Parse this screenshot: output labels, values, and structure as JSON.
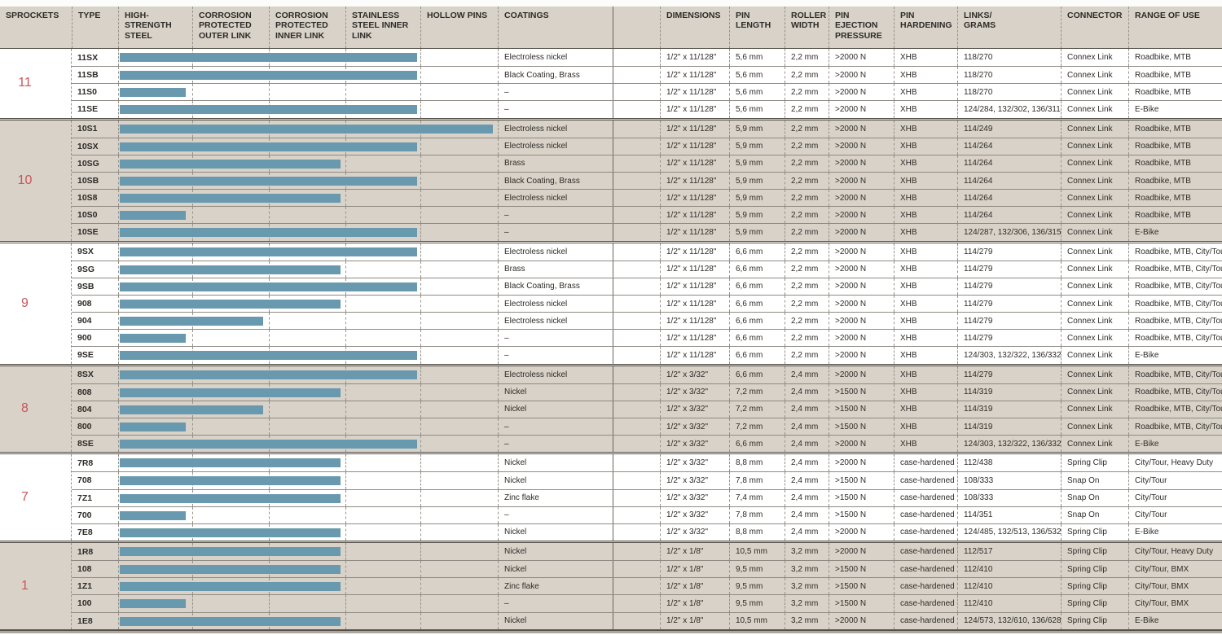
{
  "colors": {
    "accent_red": "#c7575a",
    "bar_blue": "#6899ae",
    "band_beige": "#d8d2c8"
  },
  "header": {
    "sprockets": "SPROCKETS",
    "type": "TYPE",
    "high_strength_steel": "HIGH-\nSTRENGTH\nSTEEL",
    "corrosion_outer": "CORROSION\nPROTECTED\nOUTER LINK",
    "corrosion_inner": "CORROSION\nPROTECTED\nINNER LINK",
    "stainless_inner": "STAINLESS\nSTEEL INNER\nLINK",
    "hollow_pins": "HOLLOW PINS",
    "coatings": "COATINGS",
    "spacer": "",
    "dimensions": "DIMENSIONS",
    "pin_length": "PIN\nLENGTH",
    "roller_width": "ROLLER\nWIDTH",
    "pin_ejection": "PIN\nEJECTION\nPRESSURE",
    "pin_hardening": "PIN\nHARDENING",
    "links_grams": "LINKS/\nGRAMS",
    "connector": "CONNECTOR",
    "range_of_use": "RANGE OF USE"
  },
  "feature_columns": [
    "high-strength-steel",
    "corrosion-protected-outer-link",
    "corrosion-protected-inner-link",
    "stainless-steel-inner-link",
    "hollow-pins"
  ],
  "groups": [
    {
      "sprockets": "11",
      "shaded": false,
      "rows": [
        {
          "type": "11SX",
          "bar": 4,
          "coating": "Electroless nickel",
          "dimensions": "1/2\" x 11/128\"",
          "pin_length": "5,6 mm",
          "roller_width": "2,2 mm",
          "pin_ejection": ">2000 N",
          "pin_hardening": "XHB",
          "links_grams": "118/270",
          "connector": "Connex Link",
          "range_of_use": "Roadbike, MTB"
        },
        {
          "type": "11SB",
          "bar": 4,
          "coating": "Black Coating, Brass",
          "dimensions": "1/2\" x 11/128\"",
          "pin_length": "5,6 mm",
          "roller_width": "2,2 mm",
          "pin_ejection": ">2000 N",
          "pin_hardening": "XHB",
          "links_grams": "118/270",
          "connector": "Connex Link",
          "range_of_use": "Roadbike, MTB"
        },
        {
          "type": "11S0",
          "bar": 1,
          "coating": "–",
          "dimensions": "1/2\" x 11/128\"",
          "pin_length": "5,6 mm",
          "roller_width": "2,2 mm",
          "pin_ejection": ">2000 N",
          "pin_hardening": "XHB",
          "links_grams": "118/270",
          "connector": "Connex Link",
          "range_of_use": "Roadbike, MTB"
        },
        {
          "type": "11SE",
          "bar": 4,
          "coating": "–",
          "dimensions": "1/2\" x 11/128\"",
          "pin_length": "5,6 mm",
          "roller_width": "2,2 mm",
          "pin_ejection": ">2000 N",
          "pin_hardening": "XHB",
          "links_grams": "124/284, 132/302, 136/311",
          "connector": "Connex Link",
          "range_of_use": "E-Bike"
        }
      ]
    },
    {
      "sprockets": "10",
      "shaded": true,
      "rows": [
        {
          "type": "10S1",
          "bar": 5,
          "coating": "Electroless nickel",
          "dimensions": "1/2\" x 11/128\"",
          "pin_length": "5,9 mm",
          "roller_width": "2,2 mm",
          "pin_ejection": ">2000 N",
          "pin_hardening": "XHB",
          "links_grams": "114/249",
          "connector": "Connex Link",
          "range_of_use": "Roadbike, MTB"
        },
        {
          "type": "10SX",
          "bar": 4,
          "coating": "Electroless nickel",
          "dimensions": "1/2\" x 11/128\"",
          "pin_length": "5,9 mm",
          "roller_width": "2,2 mm",
          "pin_ejection": ">2000 N",
          "pin_hardening": "XHB",
          "links_grams": "114/264",
          "connector": "Connex Link",
          "range_of_use": "Roadbike, MTB"
        },
        {
          "type": "10SG",
          "bar": 3,
          "coating": "Brass",
          "dimensions": "1/2\" x 11/128\"",
          "pin_length": "5,9 mm",
          "roller_width": "2,2 mm",
          "pin_ejection": ">2000 N",
          "pin_hardening": "XHB",
          "links_grams": "114/264",
          "connector": "Connex Link",
          "range_of_use": "Roadbike, MTB"
        },
        {
          "type": "10SB",
          "bar": 4,
          "coating": "Black Coating, Brass",
          "dimensions": "1/2\" x 11/128\"",
          "pin_length": "5,9 mm",
          "roller_width": "2,2 mm",
          "pin_ejection": ">2000 N",
          "pin_hardening": "XHB",
          "links_grams": "114/264",
          "connector": "Connex Link",
          "range_of_use": "Roadbike, MTB"
        },
        {
          "type": "10S8",
          "bar": 3,
          "coating": "Electroless nickel",
          "dimensions": "1/2\" x 11/128\"",
          "pin_length": "5,9 mm",
          "roller_width": "2,2 mm",
          "pin_ejection": ">2000 N",
          "pin_hardening": "XHB",
          "links_grams": "114/264",
          "connector": "Connex Link",
          "range_of_use": "Roadbike, MTB"
        },
        {
          "type": "10S0",
          "bar": 1,
          "coating": "–",
          "dimensions": "1/2\" x 11/128\"",
          "pin_length": "5,9 mm",
          "roller_width": "2,2 mm",
          "pin_ejection": ">2000 N",
          "pin_hardening": "XHB",
          "links_grams": "114/264",
          "connector": "Connex Link",
          "range_of_use": "Roadbike, MTB"
        },
        {
          "type": "10SE",
          "bar": 4,
          "coating": "–",
          "dimensions": "1/2\" x 11/128\"",
          "pin_length": "5,9 mm",
          "roller_width": "2,2 mm",
          "pin_ejection": ">2000 N",
          "pin_hardening": "XHB",
          "links_grams": "124/287, 132/306, 136/315",
          "connector": "Connex Link",
          "range_of_use": "E-Bike"
        }
      ]
    },
    {
      "sprockets": "9",
      "shaded": false,
      "rows": [
        {
          "type": "9SX",
          "bar": 4,
          "coating": "Electroless nickel",
          "dimensions": "1/2\" x 11/128\"",
          "pin_length": "6,6 mm",
          "roller_width": "2,2 mm",
          "pin_ejection": ">2000 N",
          "pin_hardening": "XHB",
          "links_grams": "114/279",
          "connector": "Connex Link",
          "range_of_use": "Roadbike, MTB, City/Tour"
        },
        {
          "type": "9SG",
          "bar": 3,
          "coating": "Brass",
          "dimensions": "1/2\" x 11/128\"",
          "pin_length": "6,6 mm",
          "roller_width": "2,2 mm",
          "pin_ejection": ">2000 N",
          "pin_hardening": "XHB",
          "links_grams": "114/279",
          "connector": "Connex Link",
          "range_of_use": "Roadbike, MTB, City/Tour"
        },
        {
          "type": "9SB",
          "bar": 4,
          "coating": "Black Coating, Brass",
          "dimensions": "1/2\" x 11/128\"",
          "pin_length": "6,6 mm",
          "roller_width": "2,2 mm",
          "pin_ejection": ">2000 N",
          "pin_hardening": "XHB",
          "links_grams": "114/279",
          "connector": "Connex Link",
          "range_of_use": "Roadbike, MTB, City/Tour"
        },
        {
          "type": "908",
          "bar": 3,
          "coating": "Electroless nickel",
          "dimensions": "1/2\" x 11/128\"",
          "pin_length": "6,6 mm",
          "roller_width": "2,2 mm",
          "pin_ejection": ">2000 N",
          "pin_hardening": "XHB",
          "links_grams": "114/279",
          "connector": "Connex Link",
          "range_of_use": "Roadbike, MTB, City/Tour"
        },
        {
          "type": "904",
          "bar": 2,
          "coating": "Electroless nickel",
          "dimensions": "1/2\" x 11/128\"",
          "pin_length": "6,6 mm",
          "roller_width": "2,2 mm",
          "pin_ejection": ">2000 N",
          "pin_hardening": "XHB",
          "links_grams": "114/279",
          "connector": "Connex Link",
          "range_of_use": "Roadbike, MTB, City/Tour"
        },
        {
          "type": "900",
          "bar": 1,
          "coating": "–",
          "dimensions": "1/2\" x 11/128\"",
          "pin_length": "6,6 mm",
          "roller_width": "2,2 mm",
          "pin_ejection": ">2000 N",
          "pin_hardening": "XHB",
          "links_grams": "114/279",
          "connector": "Connex Link",
          "range_of_use": "Roadbike, MTB, City/Tour"
        },
        {
          "type": "9SE",
          "bar": 4,
          "coating": "–",
          "dimensions": "1/2\" x 11/128\"",
          "pin_length": "6,6 mm",
          "roller_width": "2,2 mm",
          "pin_ejection": ">2000 N",
          "pin_hardening": "XHB",
          "links_grams": "124/303, 132/322, 136/332",
          "connector": "Connex Link",
          "range_of_use": "E-Bike"
        }
      ]
    },
    {
      "sprockets": "8",
      "shaded": true,
      "rows": [
        {
          "type": "8SX",
          "bar": 4,
          "coating": "Electroless nickel",
          "dimensions": "1/2\" x 3/32\"",
          "pin_length": "6,6 mm",
          "roller_width": "2,4 mm",
          "pin_ejection": ">2000 N",
          "pin_hardening": "XHB",
          "links_grams": "114/279",
          "connector": "Connex Link",
          "range_of_use": "Roadbike, MTB, City/Tour"
        },
        {
          "type": "808",
          "bar": 3,
          "coating": "Nickel",
          "dimensions": "1/2\" x 3/32\"",
          "pin_length": "7,2 mm",
          "roller_width": "2,4 mm",
          "pin_ejection": ">1500 N",
          "pin_hardening": "XHB",
          "links_grams": "114/319",
          "connector": "Connex Link",
          "range_of_use": "Roadbike, MTB, City/Tour"
        },
        {
          "type": "804",
          "bar": 2,
          "coating": "Nickel",
          "dimensions": "1/2\" x 3/32\"",
          "pin_length": "7,2 mm",
          "roller_width": "2,4 mm",
          "pin_ejection": ">1500 N",
          "pin_hardening": "XHB",
          "links_grams": "114/319",
          "connector": "Connex Link",
          "range_of_use": "Roadbike, MTB, City/Tour"
        },
        {
          "type": "800",
          "bar": 1,
          "coating": "–",
          "dimensions": "1/2\" x 3/32\"",
          "pin_length": "7,2 mm",
          "roller_width": "2,4 mm",
          "pin_ejection": ">1500 N",
          "pin_hardening": "XHB",
          "links_grams": "114/319",
          "connector": "Connex Link",
          "range_of_use": "Roadbike, MTB, City/Tour"
        },
        {
          "type": "8SE",
          "bar": 4,
          "coating": "–",
          "dimensions": "1/2\" x 3/32\"",
          "pin_length": "6,6 mm",
          "roller_width": "2,4 mm",
          "pin_ejection": ">2000 N",
          "pin_hardening": "XHB",
          "links_grams": "124/303, 132/322, 136/332",
          "connector": "Connex Link",
          "range_of_use": "E-Bike"
        }
      ]
    },
    {
      "sprockets": "7",
      "shaded": false,
      "rows": [
        {
          "type": "7R8",
          "bar": 3,
          "coating": "Nickel",
          "dimensions": "1/2\" x 3/32\"",
          "pin_length": "8,8 mm",
          "roller_width": "2,4 mm",
          "pin_ejection": ">2000 N",
          "pin_hardening": "case-hardened",
          "links_grams": "112/438",
          "connector": "Spring Clip",
          "range_of_use": "City/Tour, Heavy Duty"
        },
        {
          "type": "708",
          "bar": 3,
          "coating": "Nickel",
          "dimensions": "1/2\" x 3/32\"",
          "pin_length": "7,8 mm",
          "roller_width": "2,4 mm",
          "pin_ejection": ">1500 N",
          "pin_hardening": "case-hardened",
          "links_grams": "108/333",
          "connector": "Snap On",
          "range_of_use": "City/Tour"
        },
        {
          "type": "7Z1",
          "bar": 3,
          "coating": "Zinc flake",
          "dimensions": "1/2\" x 3/32\"",
          "pin_length": "7,4 mm",
          "roller_width": "2,4 mm",
          "pin_ejection": ">1500 N",
          "pin_hardening": "case-hardened",
          "links_grams": "108/333",
          "connector": "Snap On",
          "range_of_use": "City/Tour"
        },
        {
          "type": "700",
          "bar": 1,
          "coating": "–",
          "dimensions": "1/2\" x 3/32\"",
          "pin_length": "7,8 mm",
          "roller_width": "2,4 mm",
          "pin_ejection": ">1500 N",
          "pin_hardening": "case-hardened",
          "links_grams": "114/351",
          "connector": "Snap On",
          "range_of_use": "City/Tour"
        },
        {
          "type": "7E8",
          "bar": 3,
          "coating": "Nickel",
          "dimensions": "1/2\" x 3/32\"",
          "pin_length": "8,8 mm",
          "roller_width": "2,4 mm",
          "pin_ejection": ">2000 N",
          "pin_hardening": "case-hardened",
          "links_grams": "124/485, 132/513, 136/532",
          "connector": "Spring Clip",
          "range_of_use": "E-Bike"
        }
      ]
    },
    {
      "sprockets": "1",
      "shaded": true,
      "rows": [
        {
          "type": "1R8",
          "bar": 3,
          "coating": "Nickel",
          "dimensions": "1/2\" x 1/8\"",
          "pin_length": "10,5 mm",
          "roller_width": "3,2 mm",
          "pin_ejection": ">2000 N",
          "pin_hardening": "case-hardened",
          "links_grams": "112/517",
          "connector": "Spring Clip",
          "range_of_use": "City/Tour, Heavy Duty"
        },
        {
          "type": "108",
          "bar": 3,
          "coating": "Nickel",
          "dimensions": "1/2\" x 1/8\"",
          "pin_length": "9,5 mm",
          "roller_width": "3,2 mm",
          "pin_ejection": ">1500 N",
          "pin_hardening": "case-hardened",
          "links_grams": "112/410",
          "connector": "Spring Clip",
          "range_of_use": "City/Tour, BMX"
        },
        {
          "type": "1Z1",
          "bar": 3,
          "coating": "Zinc flake",
          "dimensions": "1/2\" x 1/8\"",
          "pin_length": "9,5 mm",
          "roller_width": "3,2 mm",
          "pin_ejection": ">1500 N",
          "pin_hardening": "case-hardened",
          "links_grams": "112/410",
          "connector": "Spring Clip",
          "range_of_use": "City/Tour, BMX"
        },
        {
          "type": "100",
          "bar": 1,
          "coating": "–",
          "dimensions": "1/2\" x 1/8\"",
          "pin_length": "9,5 mm",
          "roller_width": "3,2 mm",
          "pin_ejection": ">1500 N",
          "pin_hardening": "case-hardened",
          "links_grams": "112/410",
          "connector": "Spring Clip",
          "range_of_use": "City/Tour, BMX"
        },
        {
          "type": "1E8",
          "bar": 3,
          "coating": "Nickel",
          "dimensions": "1/2\" x 1/8\"",
          "pin_length": "10,5 mm",
          "roller_width": "3,2 mm",
          "pin_ejection": ">2000 N",
          "pin_hardening": "case-hardened",
          "links_grams": "124/573, 132/610, 136/628",
          "connector": "Spring Clip",
          "range_of_use": "E-Bike"
        }
      ]
    }
  ]
}
